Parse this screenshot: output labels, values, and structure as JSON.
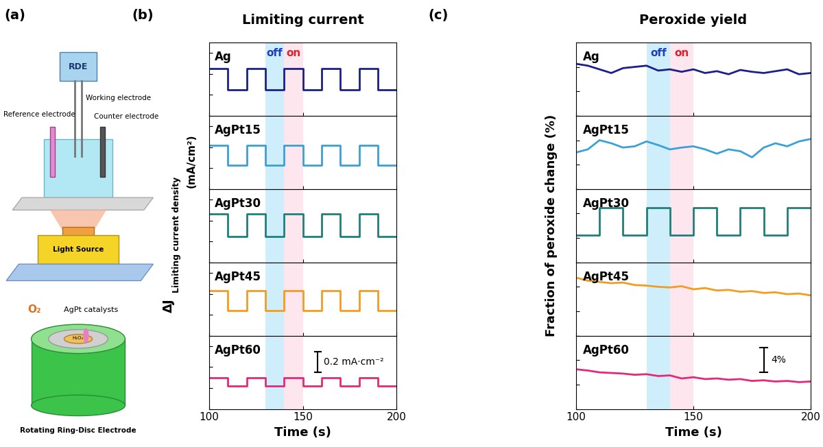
{
  "panel_labels": [
    "(a)",
    "(b)",
    "(c)"
  ],
  "diagram": {
    "rde": "RDE",
    "reference": "Reference electrode",
    "working": "Working electrode",
    "counter": "Counter electrode",
    "light_source": "Light Source",
    "oxygen": "O₂",
    "catalyst": "AgPt catalysts",
    "peroxide": "H₂O₂",
    "electrode": "Rotating Ring-Disc Electrode"
  },
  "chart_data": [
    {
      "type": "line",
      "title": "Limiting current",
      "ylabel": "ΔJ",
      "ylabel_subscript": "Limiting current density",
      "ylabel_unit": "(mA/cm²)",
      "xlabel": "Time (s)",
      "regions": [
        {
          "name": "off",
          "x": [
            130,
            140
          ],
          "color": "#cdeefa"
        },
        {
          "name": "on",
          "x": [
            140,
            150
          ],
          "color": "#fde6ee"
        }
      ],
      "scale_bar": {
        "value": 0.2,
        "label": "0.2 mA·cm⁻²"
      },
      "panels": [
        {
          "name": "Ag",
          "color": "#1b1f8a",
          "x": [
            100,
            110,
            110,
            120,
            120,
            130,
            130,
            140,
            140,
            150,
            150,
            160,
            160,
            170,
            170,
            180,
            180,
            190,
            190,
            200
          ],
          "values": [
            0.45,
            0.45,
            0.25,
            0.25,
            0.45,
            0.45,
            0.25,
            0.25,
            0.45,
            0.45,
            0.25,
            0.25,
            0.45,
            0.45,
            0.25,
            0.25,
            0.45,
            0.45,
            0.25,
            0.25
          ],
          "xlim": [
            100,
            200
          ],
          "xticks": [
            100,
            150,
            200
          ],
          "ylim": [
            0,
            0.7
          ],
          "yticks": [
            0,
            0.2,
            0.4,
            0.6
          ],
          "tick_labels": false
        },
        {
          "name": "AgPt15",
          "color": "#3aa0d8",
          "x": [
            100,
            110,
            110,
            120,
            120,
            130,
            130,
            140,
            140,
            150,
            150,
            160,
            160,
            170,
            170,
            180,
            180,
            190,
            190,
            200
          ],
          "values": [
            0.42,
            0.42,
            0.23,
            0.23,
            0.42,
            0.42,
            0.23,
            0.23,
            0.42,
            0.42,
            0.23,
            0.23,
            0.42,
            0.42,
            0.23,
            0.23,
            0.42,
            0.42,
            0.23,
            0.23
          ],
          "xlim": [
            100,
            200
          ],
          "xticks": [
            100,
            150,
            200
          ],
          "ylim": [
            0,
            0.7
          ],
          "yticks": [
            0,
            0.2,
            0.4,
            0.6
          ],
          "tick_labels": false
        },
        {
          "name": "AgPt30",
          "color": "#1f7f7a",
          "x": [
            100,
            110,
            110,
            120,
            120,
            130,
            130,
            140,
            140,
            150,
            150,
            160,
            160,
            170,
            170,
            180,
            180,
            190,
            190,
            200
          ],
          "values": [
            0.46,
            0.46,
            0.25,
            0.25,
            0.46,
            0.46,
            0.25,
            0.25,
            0.46,
            0.46,
            0.25,
            0.25,
            0.46,
            0.46,
            0.25,
            0.25,
            0.46,
            0.46,
            0.25,
            0.25
          ],
          "xlim": [
            100,
            200
          ],
          "xticks": [
            100,
            150,
            200
          ],
          "ylim": [
            0,
            0.7
          ],
          "yticks": [
            0,
            0.2,
            0.4,
            0.6
          ],
          "tick_labels": false
        },
        {
          "name": "AgPt45",
          "color": "#f39c1f",
          "x": [
            100,
            110,
            110,
            120,
            120,
            130,
            130,
            140,
            140,
            150,
            150,
            160,
            160,
            170,
            170,
            180,
            180,
            190,
            190,
            200
          ],
          "values": [
            0.43,
            0.43,
            0.24,
            0.24,
            0.43,
            0.43,
            0.24,
            0.24,
            0.43,
            0.43,
            0.24,
            0.24,
            0.43,
            0.43,
            0.24,
            0.24,
            0.43,
            0.43,
            0.24,
            0.24
          ],
          "xlim": [
            100,
            200
          ],
          "xticks": [
            100,
            150,
            200
          ],
          "ylim": [
            0,
            0.7
          ],
          "yticks": [
            0,
            0.2,
            0.4,
            0.6
          ],
          "tick_labels": false
        },
        {
          "name": "AgPt60",
          "color": "#e6287a",
          "x": [
            100,
            110,
            110,
            120,
            120,
            130,
            130,
            140,
            140,
            150,
            150,
            160,
            160,
            170,
            170,
            180,
            180,
            190,
            190,
            200
          ],
          "values": [
            0.3,
            0.3,
            0.22,
            0.22,
            0.3,
            0.3,
            0.22,
            0.22,
            0.3,
            0.3,
            0.22,
            0.22,
            0.3,
            0.3,
            0.22,
            0.22,
            0.3,
            0.3,
            0.22,
            0.22
          ],
          "xlim": [
            100,
            200
          ],
          "xticks": [
            100,
            150,
            200
          ],
          "ylim": [
            0,
            0.7
          ],
          "yticks": [
            0,
            0.2,
            0.4,
            0.6
          ],
          "tick_labels": "x"
        }
      ]
    },
    {
      "type": "line",
      "title": "Peroxide yield",
      "ylabel": "Fraction of peroxide change (%)",
      "xlabel": "Time (s)",
      "regions": [
        {
          "name": "off",
          "x": [
            130,
            140
          ],
          "color": "#cdeefa"
        },
        {
          "name": "on",
          "x": [
            140,
            150
          ],
          "color": "#fde6ee"
        }
      ],
      "scale_bar": {
        "value": 4,
        "label": "4%"
      },
      "panels": [
        {
          "name": "Ag",
          "color": "#1b1f8a",
          "x": [
            100,
            105,
            110,
            115,
            120,
            125,
            130,
            135,
            140,
            145,
            150,
            155,
            160,
            165,
            170,
            175,
            180,
            185,
            190,
            195,
            200
          ],
          "values": [
            8.5,
            8.2,
            7.6,
            7.0,
            7.8,
            8.0,
            8.2,
            7.4,
            7.6,
            7.2,
            7.6,
            7.0,
            7.3,
            6.8,
            7.5,
            7.2,
            7.0,
            7.3,
            7.6,
            6.8,
            7.0
          ],
          "xlim": [
            100,
            200
          ],
          "xticks": [
            100,
            150,
            200
          ],
          "ylim": [
            0,
            12
          ],
          "yticks": [
            0,
            4,
            8,
            12
          ],
          "tick_labels": false
        },
        {
          "name": "AgPt15",
          "color": "#3aa0d8",
          "x": [
            100,
            105,
            110,
            115,
            120,
            125,
            130,
            135,
            140,
            145,
            150,
            155,
            160,
            165,
            170,
            175,
            180,
            185,
            190,
            195,
            200
          ],
          "values": [
            6.0,
            6.5,
            8.0,
            7.5,
            6.8,
            7.0,
            7.8,
            7.2,
            6.5,
            6.8,
            7.0,
            6.5,
            5.8,
            6.5,
            6.2,
            5.2,
            6.8,
            7.5,
            7.0,
            7.8,
            8.2
          ],
          "xlim": [
            100,
            200
          ],
          "xticks": [
            100,
            150,
            200
          ],
          "ylim": [
            0,
            12
          ],
          "yticks": [
            0,
            4,
            8,
            12
          ],
          "tick_labels": false
        },
        {
          "name": "AgPt30",
          "color": "#1f7f7a",
          "x": [
            100,
            110,
            110,
            120,
            120,
            130,
            130,
            140,
            140,
            150,
            150,
            160,
            160,
            170,
            170,
            180,
            180,
            190,
            190,
            200
          ],
          "values": [
            4.5,
            4.5,
            9.0,
            9.0,
            4.5,
            4.5,
            9.0,
            9.0,
            4.5,
            4.5,
            9.0,
            9.0,
            4.5,
            4.5,
            9.0,
            9.0,
            4.5,
            4.5,
            9.0,
            9.0
          ],
          "xlim": [
            100,
            200
          ],
          "xticks": [
            100,
            150,
            200
          ],
          "ylim": [
            0,
            12
          ],
          "yticks": [
            0,
            4,
            8,
            12
          ],
          "tick_labels": false
        },
        {
          "name": "AgPt45",
          "color": "#f39c1f",
          "x": [
            100,
            105,
            110,
            115,
            120,
            125,
            130,
            135,
            140,
            145,
            150,
            155,
            160,
            165,
            170,
            175,
            180,
            185,
            190,
            195,
            200
          ],
          "values": [
            9.5,
            9.0,
            8.8,
            8.6,
            8.7,
            8.3,
            8.2,
            8.0,
            7.9,
            8.1,
            7.6,
            7.8,
            7.4,
            7.5,
            7.2,
            7.3,
            7.0,
            7.1,
            6.8,
            6.9,
            6.6
          ],
          "xlim": [
            100,
            200
          ],
          "xticks": [
            100,
            150,
            200
          ],
          "ylim": [
            0,
            12
          ],
          "yticks": [
            0,
            4,
            8,
            12
          ],
          "tick_labels": false
        },
        {
          "name": "AgPt60",
          "color": "#e6287a",
          "x": [
            100,
            105,
            110,
            115,
            120,
            125,
            130,
            135,
            140,
            145,
            150,
            155,
            160,
            165,
            170,
            175,
            180,
            185,
            190,
            195,
            200
          ],
          "values": [
            6.5,
            6.3,
            6.0,
            5.9,
            5.8,
            5.6,
            5.7,
            5.4,
            5.5,
            5.0,
            5.2,
            4.9,
            5.0,
            4.8,
            4.9,
            4.6,
            4.7,
            4.5,
            4.6,
            4.4,
            4.5
          ],
          "xlim": [
            100,
            200
          ],
          "xticks": [
            100,
            150,
            200
          ],
          "ylim": [
            0,
            12
          ],
          "yticks": [
            0,
            4,
            8,
            12
          ],
          "tick_labels": "x"
        }
      ]
    }
  ]
}
